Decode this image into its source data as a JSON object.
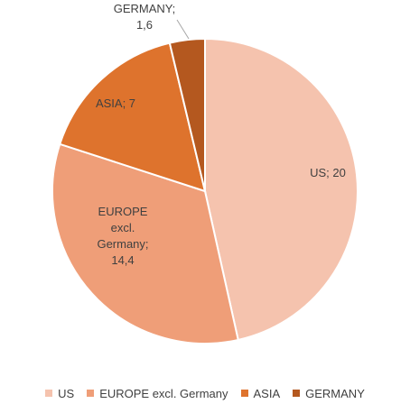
{
  "chart_data": {
    "type": "pie",
    "title": "",
    "slices": [
      {
        "name": "US",
        "value": 20,
        "label": [
          "US; 20"
        ],
        "color": "#f5c3ae"
      },
      {
        "name": "EUROPE excl. Germany",
        "value": 14.4,
        "label": [
          "EUROPE",
          "excl.",
          "Germany;",
          "14,4"
        ],
        "color": "#ef9e78"
      },
      {
        "name": "ASIA",
        "value": 7,
        "label": [
          "ASIA; 7"
        ],
        "color": "#de732d"
      },
      {
        "name": "GERMANY",
        "value": 1.6,
        "label": [
          "GERMANY;",
          "1,6"
        ],
        "color": "#b4581f"
      }
    ],
    "legend": {
      "position": "bottom"
    }
  }
}
